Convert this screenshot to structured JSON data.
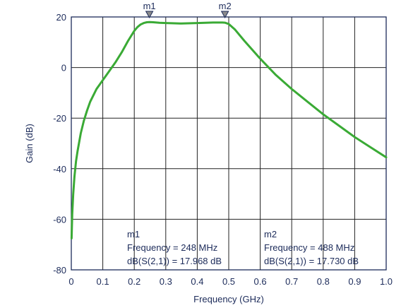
{
  "chart_data": {
    "type": "line",
    "xlabel": "Frequency (GHz)",
    "ylabel": "Gain (dB)",
    "xlim": [
      0,
      1.0
    ],
    "ylim": [
      -80,
      20
    ],
    "x_ticks": [
      0,
      0.1,
      0.2,
      0.3,
      0.4,
      0.5,
      0.6,
      0.7,
      0.8,
      0.9,
      1.0
    ],
    "x_tick_labels": [
      "0",
      "0.1",
      "0.2",
      "0.3",
      "0.4",
      "0.5",
      "0.6",
      "0.7",
      "0.8",
      "0.9",
      "1.0"
    ],
    "y_ticks": [
      -80,
      -60,
      -40,
      -20,
      0,
      20
    ],
    "y_tick_labels": [
      "-80",
      "-60",
      "-40",
      "-20",
      "0",
      "20"
    ],
    "grid": true,
    "line_color": "#3aaa35",
    "series": [
      {
        "x": [
          0.001,
          0.003,
          0.006,
          0.01,
          0.015,
          0.02,
          0.03,
          0.04,
          0.05,
          0.06,
          0.08,
          0.1,
          0.12,
          0.14,
          0.16,
          0.18,
          0.2,
          0.21,
          0.22,
          0.23,
          0.24,
          0.248,
          0.26,
          0.28,
          0.3,
          0.32,
          0.35,
          0.4,
          0.45,
          0.48,
          0.488,
          0.5,
          0.52,
          0.55,
          0.6,
          0.65,
          0.7,
          0.75,
          0.8,
          0.85,
          0.9,
          0.95,
          1.0
        ],
        "y": [
          -67.5,
          -58,
          -50,
          -43,
          -37,
          -33,
          -26,
          -21,
          -17,
          -13.5,
          -8.5,
          -5,
          -1.5,
          2,
          6,
          10.5,
          14.5,
          16,
          17,
          17.6,
          17.9,
          17.97,
          17.9,
          17.7,
          17.6,
          17.5,
          17.4,
          17.6,
          17.8,
          17.8,
          17.73,
          17.2,
          15,
          10.5,
          3.5,
          -3,
          -8.5,
          -13.5,
          -18.5,
          -23,
          -27.5,
          -31.5,
          -35.5
        ]
      }
    ],
    "markers": [
      {
        "label": "m1",
        "x": 0.248,
        "y": 17.968,
        "freq_text": "Frequency = 248 MHz",
        "gain_text": "dB(S(2,1)) = 17.968 dB"
      },
      {
        "label": "m2",
        "x": 0.488,
        "y": 17.73,
        "freq_text": "Frequency = 488 MHz",
        "gain_text": "dB(S(2,1)) = 17.730 dB"
      }
    ]
  }
}
